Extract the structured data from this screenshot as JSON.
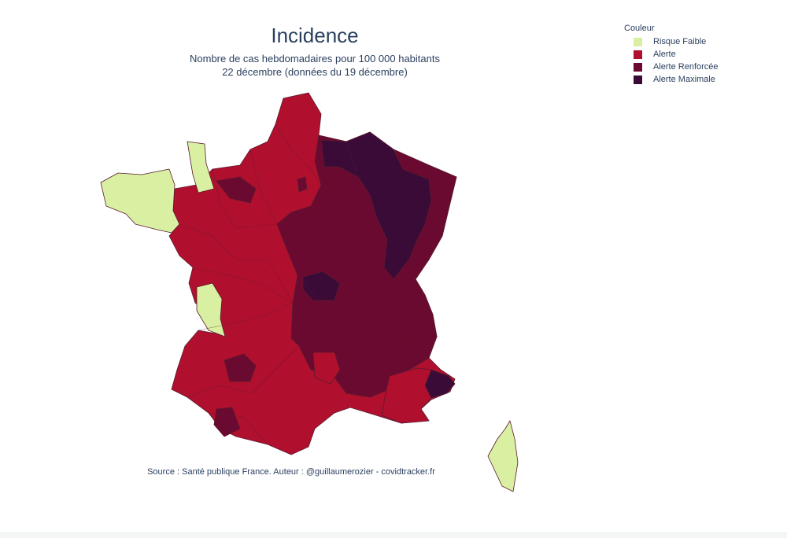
{
  "title": "Incidence",
  "subtitle_line1": "Nombre de cas hebdomadaires pour 100 000 habitants",
  "subtitle_line2": "22 décembre (données du 19 décembre)",
  "legend": {
    "title": "Couleur",
    "items": [
      {
        "label": "Risque Faible",
        "color": "#d9f0a3"
      },
      {
        "label": "Alerte",
        "color": "#b0102e"
      },
      {
        "label": "Alerte Renforcée",
        "color": "#6b0a30"
      },
      {
        "label": "Alerte Maximale",
        "color": "#3b0b38"
      }
    ]
  },
  "source": "Source : Santé publique France. Auteur : @guillaumerozier - covidtracker.fr"
}
